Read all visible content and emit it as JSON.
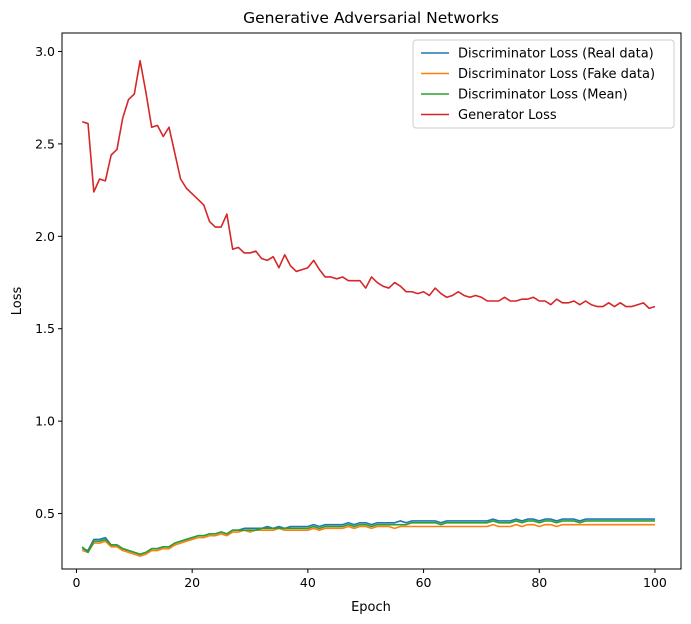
{
  "chart_data": {
    "type": "line",
    "title": "Generative Adversarial Networks",
    "xlabel": "Epoch",
    "ylabel": "Loss",
    "xlim": [
      -2.5,
      104.5
    ],
    "ylim": [
      0.2,
      3.1
    ],
    "xticks": [
      0,
      20,
      40,
      60,
      80,
      100
    ],
    "yticks": [
      0.5,
      1.0,
      1.5,
      2.0,
      2.5,
      3.0
    ],
    "ytick_labels": [
      "0.5",
      "1.0",
      "1.5",
      "2.0",
      "2.5",
      "3.0"
    ],
    "grid": false,
    "legend_position": "top-right",
    "x": [
      1,
      2,
      3,
      4,
      5,
      6,
      7,
      8,
      9,
      10,
      11,
      12,
      13,
      14,
      15,
      16,
      17,
      18,
      19,
      20,
      21,
      22,
      23,
      24,
      25,
      26,
      27,
      28,
      29,
      30,
      31,
      32,
      33,
      34,
      35,
      36,
      37,
      38,
      39,
      40,
      41,
      42,
      43,
      44,
      45,
      46,
      47,
      48,
      49,
      50,
      51,
      52,
      53,
      54,
      55,
      56,
      57,
      58,
      59,
      60,
      61,
      62,
      63,
      64,
      65,
      66,
      67,
      68,
      69,
      70,
      71,
      72,
      73,
      74,
      75,
      76,
      77,
      78,
      79,
      80,
      81,
      82,
      83,
      84,
      85,
      86,
      87,
      88,
      89,
      90,
      91,
      92,
      93,
      94,
      95,
      96,
      97,
      98,
      99,
      100
    ],
    "series": [
      {
        "name": "Discriminator Loss (Real data)",
        "color": "#1f77b4",
        "values": [
          0.31,
          0.3,
          0.36,
          0.36,
          0.37,
          0.33,
          0.33,
          0.31,
          0.3,
          0.29,
          0.28,
          0.29,
          0.31,
          0.31,
          0.32,
          0.32,
          0.34,
          0.35,
          0.36,
          0.37,
          0.38,
          0.38,
          0.39,
          0.39,
          0.4,
          0.39,
          0.41,
          0.41,
          0.42,
          0.42,
          0.42,
          0.42,
          0.43,
          0.42,
          0.43,
          0.42,
          0.43,
          0.43,
          0.43,
          0.43,
          0.44,
          0.43,
          0.44,
          0.44,
          0.44,
          0.44,
          0.45,
          0.44,
          0.45,
          0.45,
          0.44,
          0.45,
          0.45,
          0.45,
          0.45,
          0.46,
          0.45,
          0.46,
          0.46,
          0.46,
          0.46,
          0.46,
          0.45,
          0.46,
          0.46,
          0.46,
          0.46,
          0.46,
          0.46,
          0.46,
          0.46,
          0.47,
          0.46,
          0.46,
          0.46,
          0.47,
          0.46,
          0.47,
          0.47,
          0.46,
          0.47,
          0.47,
          0.46,
          0.47,
          0.47,
          0.47,
          0.46,
          0.47,
          0.47,
          0.47,
          0.47,
          0.47,
          0.47,
          0.47,
          0.47,
          0.47,
          0.47,
          0.47,
          0.47,
          0.47
        ]
      },
      {
        "name": "Discriminator Loss (Fake data)",
        "color": "#ff7f0e",
        "values": [
          0.3,
          0.29,
          0.34,
          0.34,
          0.35,
          0.32,
          0.32,
          0.3,
          0.29,
          0.28,
          0.27,
          0.28,
          0.3,
          0.3,
          0.31,
          0.31,
          0.33,
          0.34,
          0.35,
          0.36,
          0.37,
          0.37,
          0.38,
          0.38,
          0.39,
          0.38,
          0.4,
          0.4,
          0.41,
          0.4,
          0.41,
          0.41,
          0.41,
          0.41,
          0.42,
          0.41,
          0.41,
          0.41,
          0.41,
          0.41,
          0.42,
          0.41,
          0.42,
          0.42,
          0.42,
          0.42,
          0.43,
          0.42,
          0.43,
          0.43,
          0.42,
          0.43,
          0.43,
          0.43,
          0.42,
          0.43,
          0.43,
          0.43,
          0.43,
          0.43,
          0.43,
          0.43,
          0.43,
          0.43,
          0.43,
          0.43,
          0.43,
          0.43,
          0.43,
          0.43,
          0.43,
          0.44,
          0.43,
          0.43,
          0.43,
          0.44,
          0.43,
          0.44,
          0.44,
          0.43,
          0.44,
          0.44,
          0.43,
          0.44,
          0.44,
          0.44,
          0.44,
          0.44,
          0.44,
          0.44,
          0.44,
          0.44,
          0.44,
          0.44,
          0.44,
          0.44,
          0.44,
          0.44,
          0.44,
          0.44
        ]
      },
      {
        "name": "Discriminator Loss (Mean)",
        "color": "#2ca02c",
        "values": [
          0.32,
          0.29,
          0.35,
          0.35,
          0.36,
          0.33,
          0.33,
          0.31,
          0.3,
          0.29,
          0.28,
          0.29,
          0.31,
          0.31,
          0.32,
          0.32,
          0.34,
          0.35,
          0.36,
          0.37,
          0.38,
          0.38,
          0.39,
          0.39,
          0.4,
          0.39,
          0.41,
          0.41,
          0.41,
          0.41,
          0.41,
          0.42,
          0.42,
          0.42,
          0.42,
          0.42,
          0.42,
          0.42,
          0.42,
          0.42,
          0.43,
          0.42,
          0.43,
          0.43,
          0.43,
          0.43,
          0.44,
          0.43,
          0.44,
          0.44,
          0.43,
          0.44,
          0.44,
          0.44,
          0.44,
          0.44,
          0.44,
          0.45,
          0.45,
          0.45,
          0.45,
          0.45,
          0.44,
          0.45,
          0.45,
          0.45,
          0.45,
          0.45,
          0.45,
          0.45,
          0.45,
          0.46,
          0.45,
          0.45,
          0.45,
          0.46,
          0.45,
          0.46,
          0.46,
          0.45,
          0.46,
          0.46,
          0.45,
          0.46,
          0.46,
          0.46,
          0.45,
          0.46,
          0.46,
          0.46,
          0.46,
          0.46,
          0.46,
          0.46,
          0.46,
          0.46,
          0.46,
          0.46,
          0.46,
          0.46
        ]
      },
      {
        "name": "Generator Loss",
        "color": "#d62728",
        "values": [
          2.62,
          2.61,
          2.24,
          2.31,
          2.3,
          2.44,
          2.47,
          2.64,
          2.74,
          2.77,
          2.95,
          2.78,
          2.59,
          2.6,
          2.54,
          2.59,
          2.45,
          2.31,
          2.26,
          2.23,
          2.2,
          2.17,
          2.08,
          2.05,
          2.05,
          2.12,
          1.93,
          1.94,
          1.91,
          1.91,
          1.92,
          1.88,
          1.87,
          1.89,
          1.83,
          1.9,
          1.84,
          1.81,
          1.82,
          1.83,
          1.87,
          1.82,
          1.78,
          1.78,
          1.77,
          1.78,
          1.76,
          1.76,
          1.76,
          1.72,
          1.78,
          1.75,
          1.73,
          1.72,
          1.75,
          1.73,
          1.7,
          1.7,
          1.69,
          1.7,
          1.68,
          1.72,
          1.69,
          1.67,
          1.68,
          1.7,
          1.68,
          1.67,
          1.68,
          1.67,
          1.65,
          1.65,
          1.65,
          1.67,
          1.65,
          1.65,
          1.66,
          1.66,
          1.67,
          1.65,
          1.65,
          1.63,
          1.66,
          1.64,
          1.64,
          1.65,
          1.63,
          1.65,
          1.63,
          1.62,
          1.62,
          1.64,
          1.62,
          1.64,
          1.62,
          1.62,
          1.63,
          1.64,
          1.61,
          1.62
        ]
      }
    ]
  }
}
